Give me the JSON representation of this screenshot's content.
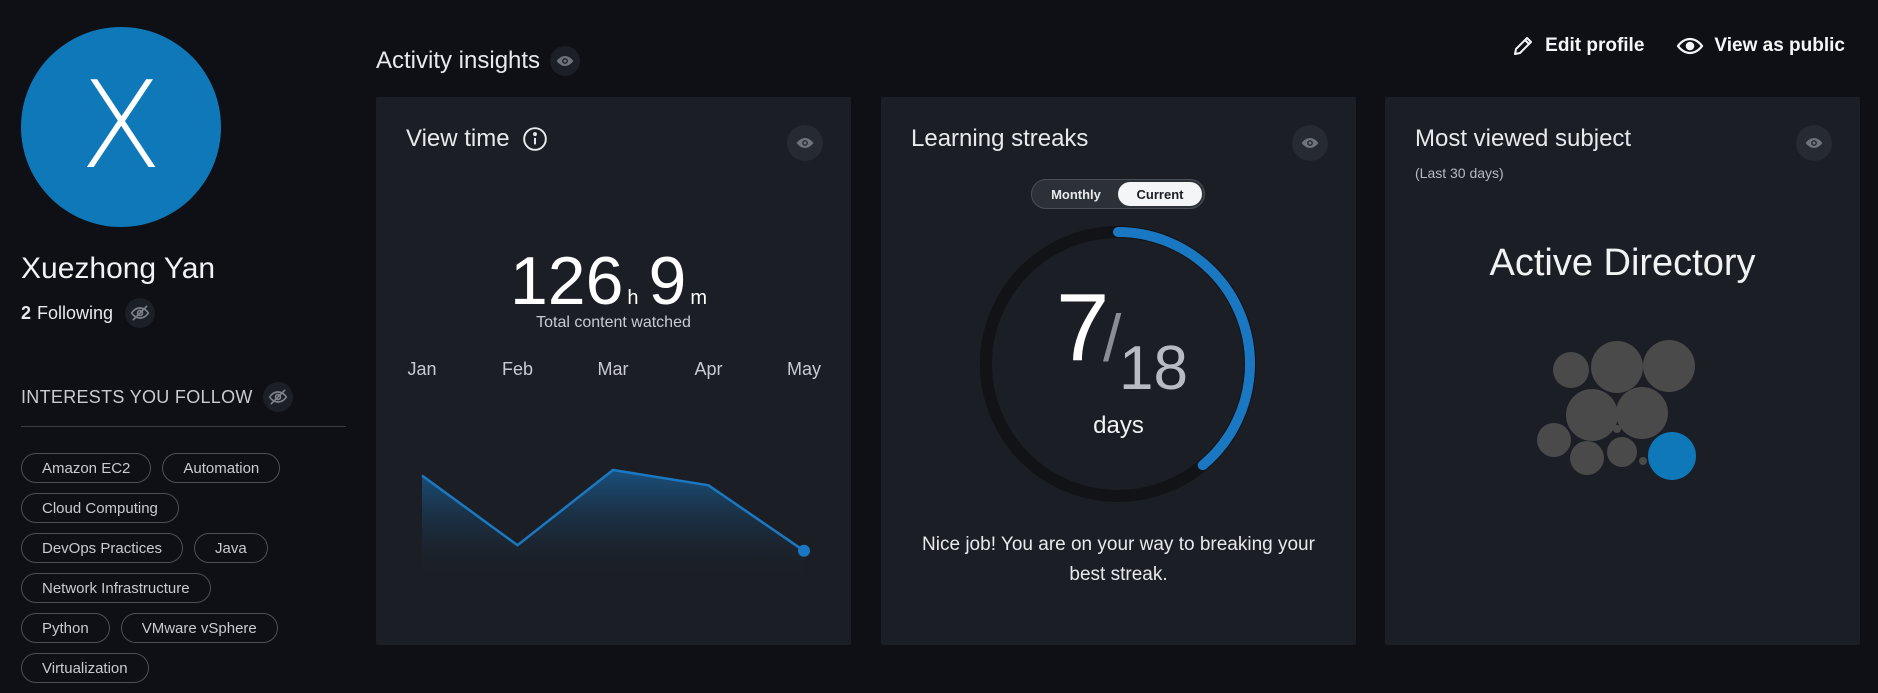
{
  "profile": {
    "avatar_letter": "X",
    "name": "Xuezhong Yan",
    "following_count": "2",
    "following_label": "Following",
    "interests_heading": "INTERESTS YOU FOLLOW",
    "interests": [
      "Amazon EC2",
      "Automation",
      "Cloud Computing",
      "DevOps Practices",
      "Java",
      "Network Infrastructure",
      "Python",
      "VMware vSphere",
      "Virtualization"
    ]
  },
  "header": {
    "title": "Activity insights",
    "edit_profile": "Edit profile",
    "view_as_public": "View as public"
  },
  "view_time": {
    "title": "View time",
    "hours": "126",
    "hours_unit": "h",
    "minutes": "9",
    "minutes_unit": "m",
    "caption": "Total content watched",
    "chart_data": {
      "type": "area",
      "x": [
        "Jan",
        "Feb",
        "Mar",
        "Apr",
        "May"
      ],
      "values": [
        8,
        3,
        8.4,
        7.3,
        2.6
      ],
      "ylim": [
        0,
        14
      ]
    }
  },
  "streaks": {
    "title": "Learning streaks",
    "toggle": {
      "monthly": "Monthly",
      "current": "Current",
      "selected": "current"
    },
    "current": "7",
    "best": "18",
    "unit": "days",
    "message": "Nice job! You are on your way to breaking your best streak."
  },
  "most_viewed": {
    "title": "Most viewed subject",
    "subtitle": "(Last 30 days)",
    "subject": "Active Directory"
  },
  "colors": {
    "accent": "#1a78c2",
    "card_bg": "#1b1e24",
    "page_bg": "#0e1015"
  }
}
